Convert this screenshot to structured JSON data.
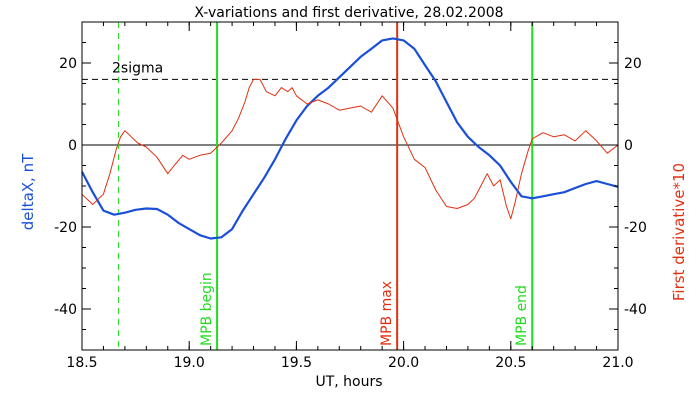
{
  "colors": {
    "deltaX": "#1a4fd8",
    "derivative": "#e03010",
    "mpb_edges": "#22dd22",
    "mpb_max": "#e03010",
    "zero": "#000000",
    "threshold": "#000000"
  },
  "chart_data": {
    "type": "line",
    "title": "X-variations and first derivative, 28.02.2008",
    "xlabel": "UT, hours",
    "ylabel": "deltaX, nT",
    "ylabel_right": "First derivative*10",
    "xlim": [
      18.5,
      21.0
    ],
    "ylim": [
      -50,
      30
    ],
    "xticks": [
      18.5,
      19.0,
      19.5,
      20.0,
      20.5,
      21.0
    ],
    "xtick_labels": [
      "18.5",
      "19.0",
      "19.5",
      "20.0",
      "20.5",
      "21.0"
    ],
    "yticks": [
      -40,
      -20,
      0,
      20
    ],
    "ytick_labels": [
      "-40",
      "-20",
      "0",
      "20"
    ],
    "grid": false,
    "horizontal_lines": [
      {
        "y": 0,
        "style": "solid"
      },
      {
        "y": 16,
        "style": "dashed",
        "label": "2sigma"
      }
    ],
    "vertical_lines": [
      {
        "x": 18.67,
        "style": "dashed",
        "color_key": "mpb_edges",
        "label": ""
      },
      {
        "x": 21.0,
        "style": "dashed",
        "color_key": "mpb_edges",
        "label": ""
      },
      {
        "x": 19.13,
        "style": "solid",
        "color_key": "mpb_edges",
        "label": "MPB begin"
      },
      {
        "x": 19.97,
        "style": "solid",
        "color_key": "mpb_max",
        "label": "MPB max"
      },
      {
        "x": 20.6,
        "style": "solid",
        "color_key": "mpb_edges",
        "label": "MPB end"
      }
    ],
    "series": [
      {
        "color_key": "deltaX",
        "axis": "left",
        "x": [
          18.5,
          18.55,
          18.6,
          18.65,
          18.7,
          18.75,
          18.8,
          18.85,
          18.9,
          18.95,
          19.0,
          19.05,
          19.1,
          19.15,
          19.2,
          19.25,
          19.3,
          19.35,
          19.4,
          19.45,
          19.5,
          19.55,
          19.6,
          19.65,
          19.7,
          19.75,
          19.8,
          19.85,
          19.9,
          19.95,
          20.0,
          20.05,
          20.1,
          20.15,
          20.2,
          20.25,
          20.3,
          20.35,
          20.4,
          20.45,
          20.5,
          20.55,
          20.6,
          20.65,
          20.7,
          20.75,
          20.8,
          20.85,
          20.9,
          20.95,
          21.0
        ],
        "y": [
          -6.5,
          -11.5,
          -16,
          -17,
          -16.5,
          -15.8,
          -15.5,
          -15.6,
          -17,
          -19,
          -20.5,
          -22,
          -22.8,
          -22.5,
          -20.5,
          -16,
          -12,
          -8,
          -3.5,
          1.5,
          6,
          9.5,
          12,
          14,
          16.5,
          19,
          21.5,
          23.5,
          25.5,
          26,
          25.5,
          23.5,
          19.5,
          15.5,
          10.5,
          5.5,
          2,
          -0.5,
          -2.5,
          -5,
          -9,
          -12.5,
          -13,
          -12.5,
          -12,
          -11.5,
          -10.5,
          -9.5,
          -8.8,
          -9.5,
          -10.2
        ]
      },
      {
        "color_key": "derivative",
        "axis": "left",
        "x": [
          18.5,
          18.55,
          18.6,
          18.63,
          18.66,
          18.68,
          18.7,
          18.73,
          18.76,
          18.8,
          18.85,
          18.9,
          18.93,
          18.97,
          19.0,
          19.05,
          19.1,
          19.15,
          19.2,
          19.23,
          19.26,
          19.28,
          19.3,
          19.33,
          19.36,
          19.4,
          19.43,
          19.46,
          19.48,
          19.5,
          19.55,
          19.6,
          19.65,
          19.7,
          19.75,
          19.8,
          19.85,
          19.9,
          19.95,
          20.0,
          20.05,
          20.1,
          20.15,
          20.2,
          20.25,
          20.3,
          20.33,
          20.36,
          20.39,
          20.42,
          20.45,
          20.48,
          20.5,
          20.52,
          20.55,
          20.58,
          20.6,
          20.65,
          20.7,
          20.75,
          20.8,
          20.85,
          20.9,
          20.95,
          21.0
        ],
        "y": [
          -12,
          -14.5,
          -12,
          -7,
          -1,
          2,
          3.5,
          2,
          0.5,
          -0.5,
          -3,
          -7,
          -5,
          -2.5,
          -3.5,
          -2.5,
          -2,
          0.5,
          3.5,
          6.5,
          10.5,
          14,
          16,
          16,
          13,
          12,
          14,
          13,
          14,
          12,
          10,
          11,
          10,
          8.5,
          9,
          9.5,
          8,
          12,
          9,
          2,
          -3.5,
          -5.5,
          -11,
          -15,
          -15.5,
          -14.5,
          -13,
          -10,
          -7,
          -10,
          -8.5,
          -15,
          -18,
          -14,
          -7,
          -1.5,
          1.5,
          3,
          2,
          2.5,
          1,
          3.5,
          1,
          -2,
          0
        ]
      }
    ]
  }
}
